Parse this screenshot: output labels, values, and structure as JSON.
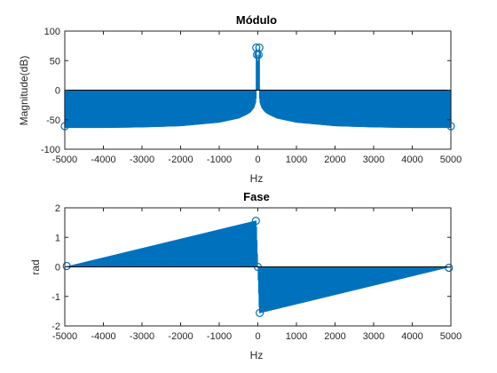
{
  "colors": {
    "stem": "#0072BD",
    "background": "#ffffff",
    "axes": "#262626"
  },
  "chart_data": [
    {
      "type": "stem",
      "title": "Módulo",
      "xlabel": "Hz",
      "ylabel": "Magnitude(dB)",
      "xlim": [
        -5000,
        5000
      ],
      "ylim": [
        -100,
        100
      ],
      "x_ticks": [
        -5000,
        -4000,
        -3000,
        -2000,
        -1000,
        0,
        1000,
        2000,
        3000,
        4000,
        5000
      ],
      "y_ticks": [
        -100,
        -50,
        0,
        50,
        100
      ],
      "grid": false,
      "envelope": {
        "x": [
          -5000,
          -4000,
          -3000,
          -2000,
          -1000,
          -500,
          -300,
          -200,
          -100,
          -50,
          0,
          50,
          100,
          200,
          300,
          500,
          1000,
          2000,
          3000,
          4000,
          5000
        ],
        "y": [
          -64,
          -64,
          -63,
          -61,
          -55,
          -48,
          -42,
          -38,
          -30,
          -20,
          50,
          -20,
          -30,
          -38,
          -42,
          -48,
          -55,
          -61,
          -63,
          -64,
          -64
        ]
      },
      "peaks": [
        {
          "x": -40,
          "y": 72
        },
        {
          "x": 40,
          "y": 72
        },
        {
          "x": -20,
          "y": 60
        },
        {
          "x": 20,
          "y": 60
        },
        {
          "x": -5000,
          "y": -61
        },
        {
          "x": 5000,
          "y": -61
        }
      ]
    },
    {
      "type": "stem",
      "title": "Fase",
      "xlabel": "Hz",
      "ylabel": "rad",
      "xlim": [
        -5000,
        5000
      ],
      "ylim": [
        -2,
        2
      ],
      "x_ticks": [
        -5000,
        -4000,
        -3000,
        -2000,
        -1000,
        0,
        1000,
        2000,
        3000,
        4000,
        5000
      ],
      "y_ticks": [
        -2,
        -1,
        0,
        1,
        2
      ],
      "grid": false,
      "envelope": {
        "x": [
          -5000,
          -40,
          -40,
          0,
          40,
          40,
          5000
        ],
        "y": [
          0,
          1.57,
          1.57,
          0,
          -1.57,
          -1.57,
          0
        ]
      },
      "peaks": [
        {
          "x": -4950,
          "y": 0.03
        },
        {
          "x": -50,
          "y": 1.56
        },
        {
          "x": 0,
          "y": 0
        },
        {
          "x": 50,
          "y": -1.56
        },
        {
          "x": 4950,
          "y": -0.03
        }
      ]
    }
  ]
}
